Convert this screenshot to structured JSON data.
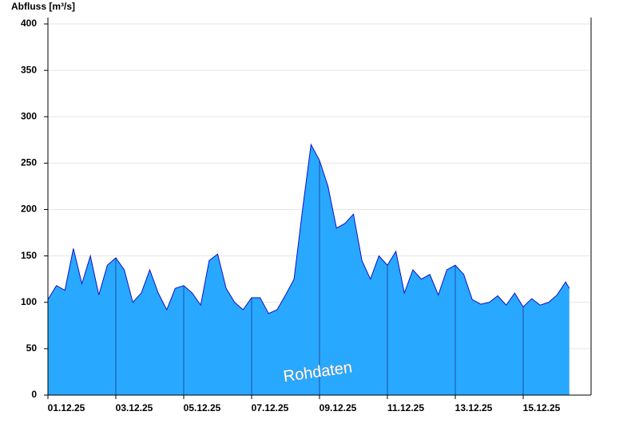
{
  "chart_data": {
    "type": "area",
    "y_label": "Abfluss [m³/s]",
    "watermark": "Rohdaten",
    "color": "#29a8ff",
    "line_color": "#1010c8",
    "x": [
      0,
      0.25,
      0.5,
      0.75,
      1,
      1.25,
      1.5,
      1.75,
      2,
      2.25,
      2.5,
      2.75,
      3,
      3.25,
      3.5,
      3.75,
      4,
      4.25,
      4.5,
      4.75,
      5,
      5.25,
      5.5,
      5.75,
      6,
      6.25,
      6.5,
      6.75,
      7,
      7.25,
      7.5,
      7.75,
      8,
      8.25,
      8.5,
      8.75,
      9,
      9.25,
      9.5,
      9.75,
      10,
      10.25,
      10.5,
      10.75,
      11,
      11.25,
      11.5,
      11.75,
      12,
      12.25,
      12.5,
      12.75,
      13,
      13.25,
      13.5,
      13.75,
      14,
      14.25,
      14.5,
      14.75,
      15,
      15.25,
      15.36
    ],
    "values": [
      103,
      118,
      113,
      158,
      120,
      150,
      108,
      140,
      148,
      135,
      100,
      110,
      135,
      110,
      92,
      115,
      118,
      110,
      97,
      145,
      152,
      115,
      100,
      92,
      105,
      105,
      88,
      92,
      108,
      125,
      200,
      270,
      253,
      225,
      180,
      185,
      195,
      145,
      125,
      150,
      140,
      155,
      110,
      135,
      125,
      130,
      108,
      135,
      140,
      130,
      103,
      98,
      100,
      107,
      97,
      110,
      95,
      104,
      97,
      100,
      108,
      122,
      115
    ],
    "xlim": [
      0,
      16
    ],
    "xticks": [
      {
        "value": 0,
        "label": "01.12.25"
      },
      {
        "value": 2,
        "label": "03.12.25"
      },
      {
        "value": 4,
        "label": "05.12.25"
      },
      {
        "value": 6,
        "label": "07.12.25"
      },
      {
        "value": 8,
        "label": "09.12.25"
      },
      {
        "value": 10,
        "label": "11.12.25"
      },
      {
        "value": 12,
        "label": "13.12.25"
      },
      {
        "value": 14,
        "label": "15.12.25"
      }
    ],
    "ylim": [
      0,
      400
    ],
    "yticks": [
      0,
      50,
      100,
      150,
      200,
      250,
      300,
      350,
      400
    ],
    "grid": true
  }
}
